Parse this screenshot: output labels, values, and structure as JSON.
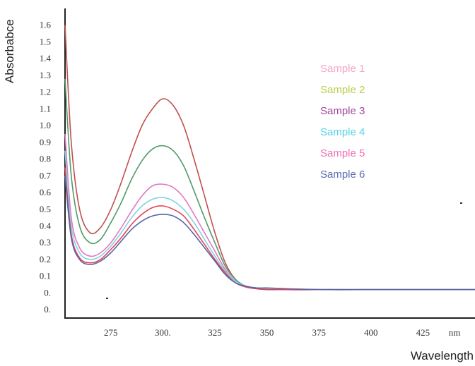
{
  "chart_data": {
    "type": "line",
    "ylabel": "Absorbabce",
    "xlabel": "Wavelength",
    "x_unit": "nm",
    "x_ticks": [
      "275",
      "300.",
      "325",
      "350",
      "375",
      "400",
      "425"
    ],
    "x_tick_values": [
      275,
      300,
      325,
      350,
      375,
      400,
      425
    ],
    "y_ticks": [
      "1.6",
      "1.5",
      "1.4",
      "1.3",
      "1.2",
      "1.1",
      "1.0",
      "0.9",
      "0.8",
      "0.7",
      "0.6",
      "0.5",
      "0.4",
      "0.3",
      "0.2",
      "0.1",
      "0.",
      "0."
    ],
    "y_tick_values": [
      1.6,
      1.5,
      1.4,
      1.3,
      1.2,
      1.1,
      1.0,
      0.9,
      0.8,
      0.7,
      0.6,
      0.5,
      0.4,
      0.3,
      0.2,
      0.1,
      0.0,
      -0.1
    ],
    "xlim": [
      253,
      450
    ],
    "ylim": [
      -0.15,
      1.7
    ],
    "grid": false,
    "legend_position": "top-right",
    "x": [
      253,
      256,
      260,
      265,
      270,
      275,
      280,
      285,
      290,
      295,
      300,
      305,
      310,
      315,
      320,
      325,
      330,
      335,
      340,
      345,
      350,
      360,
      380,
      400,
      425,
      450
    ],
    "series": [
      {
        "name": "Sample 1",
        "color": "#c0504d",
        "values": [
          1.6,
          0.9,
          0.5,
          0.36,
          0.39,
          0.5,
          0.66,
          0.84,
          1.0,
          1.1,
          1.16,
          1.12,
          1.0,
          0.8,
          0.58,
          0.36,
          0.18,
          0.08,
          0.04,
          0.03,
          0.025,
          0.02,
          0.02,
          0.02,
          0.02,
          0.02
        ]
      },
      {
        "name": "Sample 2",
        "color": "#4f9a6b",
        "values": [
          1.28,
          0.7,
          0.4,
          0.3,
          0.32,
          0.42,
          0.54,
          0.68,
          0.79,
          0.86,
          0.88,
          0.85,
          0.76,
          0.61,
          0.45,
          0.3,
          0.16,
          0.08,
          0.04,
          0.03,
          0.025,
          0.02,
          0.02,
          0.02,
          0.02,
          0.02
        ]
      },
      {
        "name": "Sample 3",
        "color": "#e377c2",
        "values": [
          0.95,
          0.45,
          0.27,
          0.22,
          0.24,
          0.3,
          0.39,
          0.49,
          0.58,
          0.64,
          0.65,
          0.63,
          0.57,
          0.47,
          0.36,
          0.25,
          0.14,
          0.07,
          0.04,
          0.03,
          0.025,
          0.02,
          0.02,
          0.02,
          0.02,
          0.02
        ]
      },
      {
        "name": "Sample 4",
        "color": "#7fd4e6",
        "values": [
          0.85,
          0.4,
          0.24,
          0.2,
          0.22,
          0.28,
          0.36,
          0.45,
          0.52,
          0.56,
          0.57,
          0.55,
          0.5,
          0.42,
          0.32,
          0.22,
          0.13,
          0.07,
          0.04,
          0.03,
          0.025,
          0.02,
          0.02,
          0.02,
          0.02,
          0.02
        ]
      },
      {
        "name": "Sample 5",
        "color": "#e5434f",
        "values": [
          0.75,
          0.35,
          0.21,
          0.18,
          0.2,
          0.26,
          0.33,
          0.41,
          0.47,
          0.51,
          0.52,
          0.5,
          0.46,
          0.38,
          0.29,
          0.2,
          0.12,
          0.06,
          0.035,
          0.025,
          0.02,
          0.02,
          0.02,
          0.02,
          0.02,
          0.02
        ]
      },
      {
        "name": "Sample 6",
        "color": "#5566a8",
        "values": [
          0.7,
          0.33,
          0.2,
          0.17,
          0.19,
          0.24,
          0.31,
          0.38,
          0.43,
          0.46,
          0.47,
          0.46,
          0.42,
          0.35,
          0.27,
          0.19,
          0.11,
          0.06,
          0.04,
          0.03,
          0.03,
          0.025,
          0.02,
          0.02,
          0.02,
          0.02
        ]
      }
    ],
    "legend_colors": [
      "#f4a6c8",
      "#b9cf4a",
      "#a1489b",
      "#54d4e8",
      "#f06fb8",
      "#5c6bb0"
    ]
  }
}
